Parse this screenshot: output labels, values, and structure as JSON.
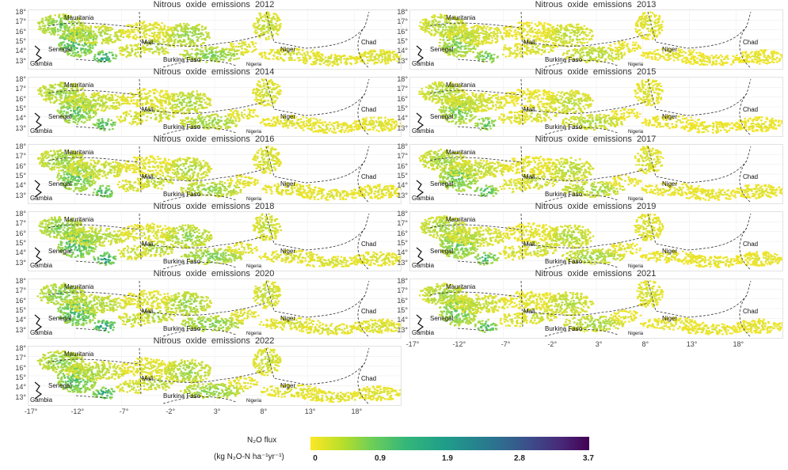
{
  "panels": [
    {
      "title": "Nitrous  oxide  emissions  2012",
      "year": 2012,
      "intensity": 0.55
    },
    {
      "title": "Nitrous  oxide  emissions  2013",
      "year": 2013,
      "intensity": 0.35
    },
    {
      "title": "Nitrous  oxide  emissions  2014",
      "year": 2014,
      "intensity": 0.45
    },
    {
      "title": "Nitrous  oxide  emissions  2015",
      "year": 2015,
      "intensity": 0.35
    },
    {
      "title": "Nitrous  oxide  emissions  2016",
      "year": 2016,
      "intensity": 0.45
    },
    {
      "title": "Nitrous  oxide  emissions  2017",
      "year": 2017,
      "intensity": 0.4
    },
    {
      "title": "Nitrous  oxide  emissions  2018",
      "year": 2018,
      "intensity": 0.55
    },
    {
      "title": "Nitrous  oxide  emissions  2019",
      "year": 2019,
      "intensity": 0.4
    },
    {
      "title": "Nitrous  oxide  emissions  2020",
      "year": 2020,
      "intensity": 0.55
    },
    {
      "title": "Nitrous  oxide  emissions  2021",
      "year": 2021,
      "intensity": 0.4
    },
    {
      "title": "Nitrous  oxide  emissions  2022",
      "year": 2022,
      "intensity": 0.5
    }
  ],
  "country_labels": [
    "Mauritania",
    "Senegal",
    "Gambia",
    "Mali",
    "Burkina Faso",
    "Niger",
    "Nigeria",
    "Chad"
  ],
  "y_ticks": [
    "18°",
    "17°",
    "16°",
    "15°",
    "14°",
    "13°"
  ],
  "x_ticks": [
    "-17°",
    "-12°",
    "-7°",
    "-2°",
    "3°",
    "8°",
    "13°",
    "18°"
  ],
  "legend": {
    "title": "N₂O flux",
    "units": "(kg N₂O-N ha⁻¹yr⁻¹)",
    "ticks": [
      "0",
      "0.9",
      "1.9",
      "2.8",
      "3.7"
    ],
    "colors": [
      "#fde725",
      "#6ece58",
      "#1f9e89",
      "#31688e",
      "#440154"
    ]
  }
}
